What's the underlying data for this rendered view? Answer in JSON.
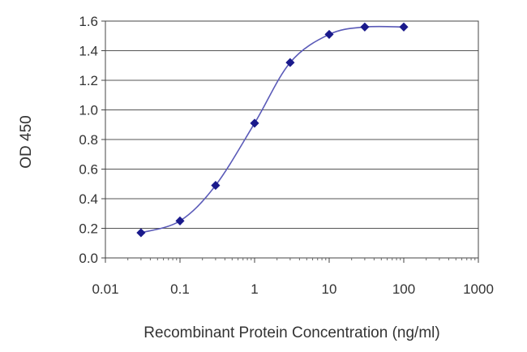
{
  "chart_data": {
    "type": "line",
    "title": "",
    "xlabel": "Recombinant Protein Concentration (ng/ml)",
    "ylabel": "OD 450",
    "x_scale": "log",
    "xlim": [
      0.01,
      1000
    ],
    "ylim": [
      0.0,
      1.6
    ],
    "x_ticks": [
      "0.01",
      "0.1",
      "1",
      "10",
      "100",
      "1000"
    ],
    "y_ticks": [
      "0.0",
      "0.2",
      "0.4",
      "0.6",
      "0.8",
      "1.0",
      "1.2",
      "1.4",
      "1.6"
    ],
    "grid": "horizontal",
    "legend": "none",
    "series": [
      {
        "x": [
          0.03,
          0.1,
          0.3,
          1,
          3,
          10,
          30,
          100
        ],
        "y": [
          0.17,
          0.25,
          0.49,
          0.91,
          1.32,
          1.51,
          1.56,
          1.56
        ],
        "color": "#1a1a8c",
        "line_color": "#5a5ab8"
      }
    ]
  }
}
